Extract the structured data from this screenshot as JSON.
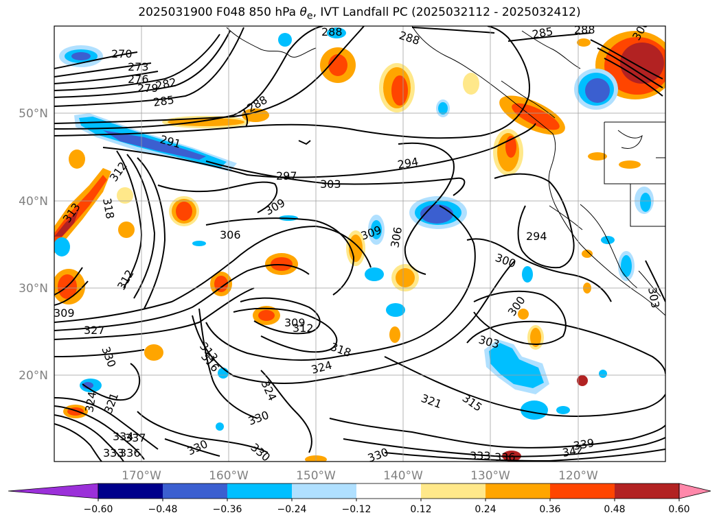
{
  "title": {
    "prefix": "2025031900 F048 850 hPa ",
    "theta": "θ",
    "theta_sub": "e",
    "suffix": ", IVT Landfall PC (2025032112 - 2025032412)"
  },
  "axes": {
    "lat_labels": [
      "50°N",
      "40°N",
      "30°N",
      "20°N"
    ],
    "lon_labels": [
      "170°W",
      "160°W",
      "150°W",
      "140°W",
      "130°W",
      "120°W"
    ]
  },
  "colorbar": {
    "ticks": [
      "−0.60",
      "−0.48",
      "−0.36",
      "−0.24",
      "−0.12",
      "0.12",
      "0.24",
      "0.36",
      "0.48",
      "0.60"
    ],
    "colors": {
      "under": "#9b30d9",
      "bins": [
        "#00008b",
        "#3b5fd0",
        "#00bfff",
        "#b0e0ff",
        "#ffffff",
        "#ffe88a",
        "#ffa500",
        "#ff4500",
        "#b22222"
      ],
      "over": "#ff88aa"
    }
  },
  "contour_labels": [
    "270",
    "273",
    "276",
    "279",
    "282",
    "285",
    "288",
    "288",
    "288",
    "285",
    "288",
    "291",
    "294",
    "297",
    "303",
    "309",
    "312",
    "318",
    "313",
    "306",
    "309",
    "306",
    "294",
    "300",
    "312",
    "309",
    "327",
    "309",
    "312",
    "318",
    "324",
    "300",
    "303",
    "330",
    "324",
    "321",
    "313",
    "316",
    "324",
    "330",
    "321",
    "315",
    "342",
    "339",
    "333",
    "336",
    "330",
    "330",
    "330",
    "334",
    "337",
    "336",
    "333",
    "303",
    "306"
  ],
  "shading_colors": {
    "orange": "#ffa500",
    "red": "#ff4500",
    "yellow": "#ffe88a",
    "cyan": "#00bfff",
    "lightblue": "#b0e0ff",
    "blue": "#3b5fd0",
    "navy": "#00008b"
  }
}
